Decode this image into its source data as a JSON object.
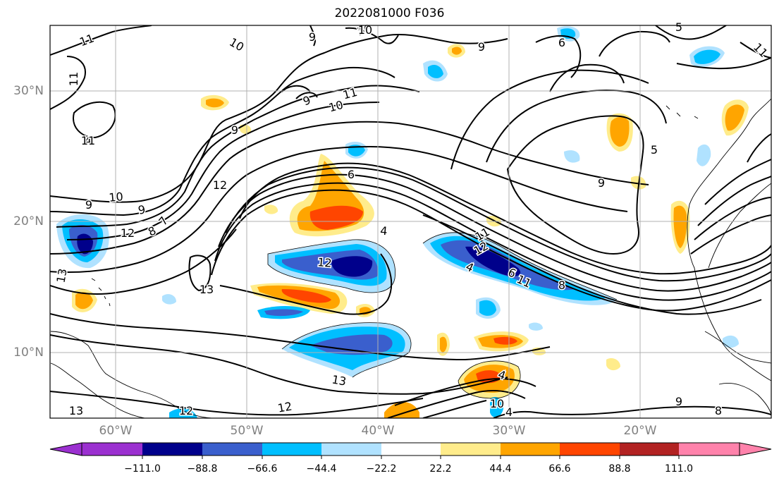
{
  "title": "2022081000 F036",
  "map": {
    "lon_range": [
      -65,
      -10
    ],
    "lat_range": [
      5,
      35
    ],
    "lat_labels": [
      "30°N",
      "20°N",
      "10°N"
    ],
    "lon_labels": [
      "60°W",
      "50°W",
      "40°W",
      "30°W",
      "20°W"
    ],
    "grid": true,
    "contour_labels": [
      "11",
      "10",
      "9",
      "10",
      "9",
      "6",
      "5",
      "4",
      "11",
      "11",
      "10",
      "9",
      "9",
      "10",
      "11",
      "9",
      "12",
      "10",
      "9",
      "8",
      "7",
      "6",
      "4",
      "12",
      "13",
      "13",
      "13",
      "12",
      "11",
      "12",
      "4",
      "6",
      "11",
      "8",
      "9",
      "5",
      "4",
      "4",
      "10",
      "9",
      "8",
      "13",
      "12",
      "12",
      "11"
    ]
  },
  "colorbar": {
    "ticks": [
      "−111.0",
      "−88.8",
      "−66.6",
      "−44.4",
      "−22.2",
      "22.2",
      "44.4",
      "66.6",
      "88.8",
      "111.0"
    ],
    "colors": [
      "#9b30d0",
      "#00008b",
      "#3a5fcd",
      "#00bfff",
      "#b0e2ff",
      "#ffffff",
      "#ffec8b",
      "#ffa500",
      "#ff4500",
      "#b22222",
      "#ff82ab"
    ]
  }
}
